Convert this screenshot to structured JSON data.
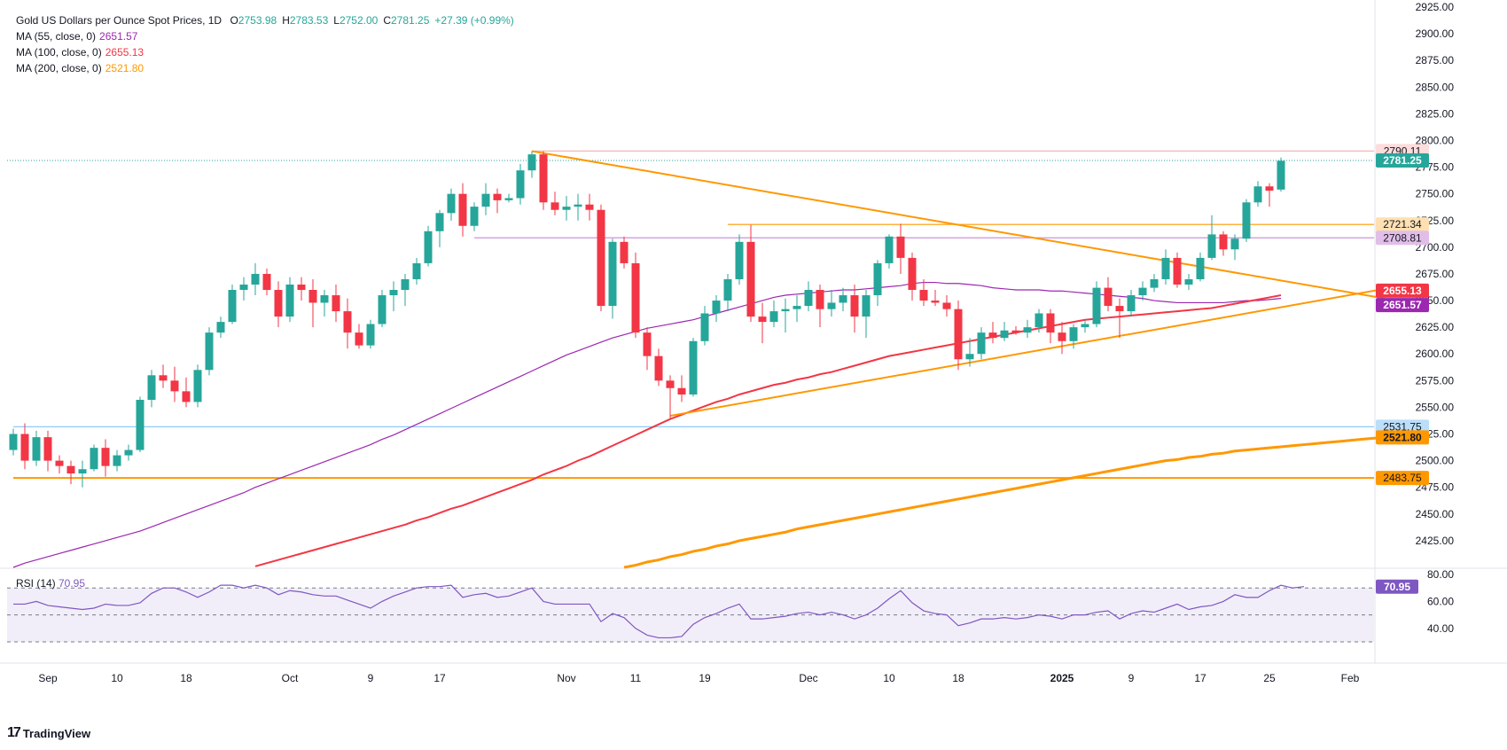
{
  "header": {
    "symbol": "Gold US Dollars per Ounce Spot Prices, 1D",
    "ohlc": [
      {
        "k": "O",
        "v": "2753.98"
      },
      {
        "k": "H",
        "v": "2783.53"
      },
      {
        "k": "L",
        "v": "2752.00"
      },
      {
        "k": "C",
        "v": "2781.25"
      },
      {
        "k": "",
        "v": "+27.39 (+0.99%)"
      }
    ]
  },
  "indicators": [
    {
      "label": "MA (55, close, 0)",
      "value": "2651.57",
      "color": "#9c27b0"
    },
    {
      "label": "MA (100, close, 0)",
      "value": "2655.13",
      "color": "#f23645"
    },
    {
      "label": "MA (200, close, 0)",
      "value": "2521.80",
      "color": "#ff9800"
    }
  ],
  "rsi": {
    "label": "RSI (14)",
    "value": "70.95",
    "color": "#7e57c2"
  },
  "branding": {
    "name": "TradingView"
  },
  "colors": {
    "up": "#26a69a",
    "down": "#f23645",
    "ma55": "#9c27b0",
    "ma100": "#f23645",
    "ma200": "#ff9800",
    "trend": "#ff9800",
    "rsi": "#7e57c2"
  },
  "chart_data": {
    "type": "candlestick",
    "title": "Gold US Dollars per Ounce Spot Prices, 1D",
    "ylim": [
      2400,
      2925
    ],
    "y_ticks": [
      2425,
      2450,
      2475,
      2500,
      2525,
      2550,
      2575,
      2600,
      2625,
      2650,
      2675,
      2700,
      2725,
      2750,
      2775,
      2800,
      2825,
      2850,
      2875,
      2900,
      2925
    ],
    "x_ticks": [
      {
        "label": "Sep",
        "i": 3
      },
      {
        "label": "10",
        "i": 9
      },
      {
        "label": "18",
        "i": 15
      },
      {
        "label": "Oct",
        "i": 24
      },
      {
        "label": "9",
        "i": 31
      },
      {
        "label": "17",
        "i": 37
      },
      {
        "label": "Nov",
        "i": 48
      },
      {
        "label": "11",
        "i": 54
      },
      {
        "label": "19",
        "i": 60
      },
      {
        "label": "Dec",
        "i": 69
      },
      {
        "label": "10",
        "i": 76
      },
      {
        "label": "18",
        "i": 82
      },
      {
        "label": "2025",
        "i": 91
      },
      {
        "label": "9",
        "i": 97
      },
      {
        "label": "17",
        "i": 103
      },
      {
        "label": "25",
        "i": 109
      },
      {
        "label": "Feb",
        "i": 116
      }
    ],
    "candles": [
      [
        2510,
        2530,
        2505,
        2525
      ],
      [
        2525,
        2535,
        2492,
        2500
      ],
      [
        2500,
        2528,
        2495,
        2522
      ],
      [
        2522,
        2528,
        2490,
        2500
      ],
      [
        2500,
        2505,
        2488,
        2495
      ],
      [
        2495,
        2500,
        2478,
        2488
      ],
      [
        2488,
        2500,
        2475,
        2492
      ],
      [
        2492,
        2515,
        2490,
        2512
      ],
      [
        2512,
        2520,
        2485,
        2495
      ],
      [
        2495,
        2510,
        2490,
        2505
      ],
      [
        2505,
        2515,
        2500,
        2510
      ],
      [
        2510,
        2560,
        2508,
        2557
      ],
      [
        2557,
        2585,
        2550,
        2580
      ],
      [
        2580,
        2590,
        2568,
        2575
      ],
      [
        2575,
        2588,
        2555,
        2565
      ],
      [
        2565,
        2578,
        2550,
        2555
      ],
      [
        2555,
        2590,
        2550,
        2585
      ],
      [
        2585,
        2625,
        2580,
        2620
      ],
      [
        2620,
        2635,
        2615,
        2630
      ],
      [
        2630,
        2665,
        2628,
        2660
      ],
      [
        2660,
        2672,
        2650,
        2665
      ],
      [
        2665,
        2685,
        2655,
        2675
      ],
      [
        2675,
        2680,
        2655,
        2660
      ],
      [
        2660,
        2668,
        2625,
        2635
      ],
      [
        2635,
        2672,
        2630,
        2665
      ],
      [
        2665,
        2672,
        2650,
        2660
      ],
      [
        2660,
        2670,
        2625,
        2648
      ],
      [
        2648,
        2660,
        2635,
        2655
      ],
      [
        2655,
        2665,
        2630,
        2640
      ],
      [
        2640,
        2652,
        2605,
        2620
      ],
      [
        2620,
        2628,
        2605,
        2608
      ],
      [
        2608,
        2632,
        2605,
        2628
      ],
      [
        2628,
        2660,
        2625,
        2655
      ],
      [
        2655,
        2668,
        2640,
        2660
      ],
      [
        2660,
        2675,
        2645,
        2670
      ],
      [
        2670,
        2690,
        2665,
        2685
      ],
      [
        2685,
        2720,
        2682,
        2715
      ],
      [
        2715,
        2735,
        2700,
        2732
      ],
      [
        2732,
        2755,
        2725,
        2750
      ],
      [
        2750,
        2760,
        2710,
        2720
      ],
      [
        2720,
        2742,
        2715,
        2738
      ],
      [
        2738,
        2760,
        2730,
        2750
      ],
      [
        2750,
        2755,
        2732,
        2744
      ],
      [
        2744,
        2750,
        2742,
        2746
      ],
      [
        2746,
        2778,
        2740,
        2772
      ],
      [
        2772,
        2790,
        2765,
        2787
      ],
      [
        2787,
        2790,
        2735,
        2742
      ],
      [
        2742,
        2752,
        2730,
        2735
      ],
      [
        2735,
        2748,
        2725,
        2738
      ],
      [
        2738,
        2750,
        2725,
        2740
      ],
      [
        2740,
        2750,
        2725,
        2735
      ],
      [
        2735,
        2740,
        2640,
        2645
      ],
      [
        2645,
        2708,
        2633,
        2705
      ],
      [
        2705,
        2710,
        2680,
        2685
      ],
      [
        2685,
        2695,
        2615,
        2620
      ],
      [
        2620,
        2625,
        2585,
        2598
      ],
      [
        2598,
        2605,
        2570,
        2575
      ],
      [
        2575,
        2580,
        2540,
        2568
      ],
      [
        2568,
        2580,
        2555,
        2562
      ],
      [
        2562,
        2615,
        2560,
        2612
      ],
      [
        2612,
        2645,
        2608,
        2638
      ],
      [
        2638,
        2655,
        2630,
        2650
      ],
      [
        2650,
        2675,
        2640,
        2670
      ],
      [
        2670,
        2712,
        2665,
        2705
      ],
      [
        2705,
        2721,
        2630,
        2635
      ],
      [
        2635,
        2648,
        2610,
        2630
      ],
      [
        2630,
        2650,
        2625,
        2640
      ],
      [
        2640,
        2652,
        2620,
        2642
      ],
      [
        2642,
        2655,
        2630,
        2645
      ],
      [
        2645,
        2668,
        2640,
        2660
      ],
      [
        2660,
        2665,
        2625,
        2642
      ],
      [
        2642,
        2660,
        2635,
        2648
      ],
      [
        2648,
        2662,
        2640,
        2655
      ],
      [
        2655,
        2665,
        2620,
        2635
      ],
      [
        2635,
        2660,
        2615,
        2655
      ],
      [
        2655,
        2688,
        2645,
        2685
      ],
      [
        2685,
        2712,
        2680,
        2710
      ],
      [
        2710,
        2722,
        2675,
        2690
      ],
      [
        2690,
        2695,
        2650,
        2660
      ],
      [
        2660,
        2670,
        2645,
        2650
      ],
      [
        2650,
        2660,
        2645,
        2648
      ],
      [
        2648,
        2655,
        2635,
        2642
      ],
      [
        2642,
        2650,
        2585,
        2595
      ],
      [
        2595,
        2615,
        2588,
        2600
      ],
      [
        2600,
        2625,
        2595,
        2620
      ],
      [
        2620,
        2630,
        2610,
        2615
      ],
      [
        2615,
        2630,
        2612,
        2622
      ],
      [
        2622,
        2626,
        2618,
        2620
      ],
      [
        2620,
        2632,
        2615,
        2625
      ],
      [
        2625,
        2642,
        2620,
        2638
      ],
      [
        2638,
        2642,
        2610,
        2620
      ],
      [
        2620,
        2630,
        2600,
        2612
      ],
      [
        2612,
        2628,
        2605,
        2625
      ],
      [
        2625,
        2632,
        2620,
        2628
      ],
      [
        2628,
        2668,
        2625,
        2662
      ],
      [
        2662,
        2672,
        2640,
        2645
      ],
      [
        2645,
        2652,
        2615,
        2640
      ],
      [
        2640,
        2660,
        2635,
        2655
      ],
      [
        2655,
        2668,
        2650,
        2662
      ],
      [
        2662,
        2675,
        2658,
        2670
      ],
      [
        2670,
        2698,
        2665,
        2690
      ],
      [
        2690,
        2695,
        2662,
        2665
      ],
      [
        2665,
        2675,
        2660,
        2670
      ],
      [
        2670,
        2695,
        2668,
        2690
      ],
      [
        2690,
        2730,
        2688,
        2712
      ],
      [
        2712,
        2715,
        2692,
        2698
      ],
      [
        2698,
        2712,
        2688,
        2708
      ],
      [
        2708,
        2745,
        2705,
        2742
      ],
      [
        2742,
        2762,
        2738,
        2757
      ],
      [
        2757,
        2760,
        2738,
        2753
      ],
      [
        2754,
        2784,
        2752,
        2781
      ]
    ],
    "ma55": [
      2400,
      2404,
      2407,
      2410,
      2413,
      2416,
      2419,
      2422,
      2425,
      2428,
      2431,
      2434,
      2438,
      2442,
      2446,
      2450,
      2454,
      2458,
      2462,
      2466,
      2470,
      2475,
      2479,
      2483,
      2487,
      2491,
      2495,
      2499,
      2503,
      2507,
      2511,
      2515,
      2520,
      2524,
      2529,
      2534,
      2539,
      2544,
      2549,
      2554,
      2559,
      2564,
      2569,
      2574,
      2579,
      2584,
      2589,
      2594,
      2599,
      2603,
      2607,
      2611,
      2615,
      2618,
      2621,
      2624,
      2626,
      2628,
      2630,
      2632,
      2635,
      2638,
      2641,
      2644,
      2647,
      2650,
      2653,
      2655,
      2656,
      2657,
      2658,
      2659,
      2660,
      2660,
      2661,
      2662,
      2663,
      2664,
      2666,
      2667,
      2667,
      2666,
      2666,
      2665,
      2664,
      2662,
      2661,
      2660,
      2660,
      2660,
      2659,
      2659,
      2658,
      2657,
      2656,
      2655,
      2654,
      2653,
      2652,
      2650,
      2649,
      2648,
      2648,
      2648,
      2648,
      2648,
      2649,
      2650,
      2650,
      2651,
      2652
    ],
    "ma55_start": 0,
    "ma100": [
      2380,
      2382,
      2385,
      2387,
      2390,
      2393,
      2396,
      2398,
      2401,
      2404,
      2407,
      2410,
      2413,
      2416,
      2419,
      2422,
      2425,
      2428,
      2431,
      2434,
      2437,
      2440,
      2444,
      2447,
      2451,
      2455,
      2458,
      2462,
      2466,
      2470,
      2474,
      2478,
      2482,
      2487,
      2491,
      2495,
      2500,
      2504,
      2509,
      2514,
      2519,
      2524,
      2529,
      2534,
      2539,
      2543,
      2547,
      2551,
      2555,
      2558,
      2562,
      2565,
      2568,
      2571,
      2573,
      2576,
      2578,
      2581,
      2583,
      2586,
      2589,
      2592,
      2595,
      2598,
      2600,
      2602,
      2604,
      2606,
      2608,
      2610,
      2612,
      2614,
      2616,
      2618,
      2620,
      2622,
      2624,
      2626,
      2628,
      2630,
      2632,
      2633,
      2634,
      2635,
      2636,
      2637,
      2638,
      2639,
      2640,
      2641,
      2642,
      2643,
      2645,
      2647,
      2649,
      2651,
      2653,
      2655
    ],
    "ma100_start": 13,
    "ma200": [
      2400,
      2402,
      2405,
      2407,
      2410,
      2412,
      2415,
      2417,
      2420,
      2422,
      2425,
      2427,
      2429,
      2431,
      2433,
      2436,
      2438,
      2440,
      2442,
      2444,
      2446,
      2448,
      2450,
      2452,
      2454,
      2456,
      2458,
      2460,
      2462,
      2464,
      2466,
      2468,
      2470,
      2472,
      2474,
      2476,
      2478,
      2480,
      2482,
      2484,
      2486,
      2488,
      2490,
      2492,
      2494,
      2496,
      2498,
      2500,
      2501,
      2503,
      2504,
      2506,
      2507,
      2509,
      2510,
      2511,
      2512,
      2513,
      2514,
      2515,
      2516,
      2517,
      2518,
      2519,
      2520,
      2521,
      2522
    ],
    "ma200_start": 53,
    "horizontal_levels": [
      {
        "value": 2790.11,
        "label": "2790.11",
        "line": "#f4b6b6",
        "badge_bg": "#fddcdc",
        "badge_fg": "#131722",
        "from": 45
      },
      {
        "value": 2721.34,
        "label": "2721.34",
        "line": "#ff9800",
        "badge_bg": "#ffe0b2",
        "badge_fg": "#131722",
        "from": 62
      },
      {
        "value": 2708.81,
        "label": "2708.81",
        "line": "#ce93d8",
        "badge_bg": "#e1bee7",
        "badge_fg": "#131722",
        "from": 40
      },
      {
        "value": 2531.75,
        "label": "2531.75",
        "line": "#90caf9",
        "badge_bg": "#bbdefb",
        "badge_fg": "#131722",
        "from": 0
      },
      {
        "value": 2483.75,
        "label": "2483.75",
        "line": "#ff9800",
        "badge_bg": "#ff9800",
        "badge_fg": "#131722",
        "from": 0
      }
    ],
    "price_badges": [
      {
        "value": 2781.25,
        "label": "2781.25",
        "bg": "#26a69a",
        "fg": "#ffffff"
      },
      {
        "value": 2655.13,
        "label": "2655.13",
        "bg": "#f23645",
        "fg": "#ffffff"
      },
      {
        "value": 2651.57,
        "label": "2651.57",
        "bg": "#9c27b0",
        "fg": "#ffffff"
      },
      {
        "value": 2521.8,
        "label": "2521.80",
        "bg": "#ff9800",
        "fg": "#131722"
      }
    ],
    "trendlines": [
      {
        "from": [
          45,
          2790
        ],
        "to": [
          119,
          2652
        ]
      },
      {
        "from": [
          57,
          2542
        ],
        "to": [
          119,
          2661
        ]
      }
    ],
    "rsi": {
      "ylim": [
        30,
        80
      ],
      "levels": [
        70,
        50,
        30
      ],
      "ticks": [
        80,
        60,
        40
      ],
      "values": [
        58,
        58,
        60,
        57,
        56,
        55,
        54,
        55,
        58,
        57,
        57,
        59,
        66,
        70,
        70,
        67,
        63,
        67,
        72,
        72,
        70,
        72,
        70,
        65,
        68,
        67,
        65,
        64,
        64,
        61,
        58,
        55,
        60,
        64,
        67,
        70,
        71,
        71,
        72,
        63,
        65,
        66,
        63,
        64,
        67,
        70,
        60,
        58,
        58,
        58,
        58,
        45,
        51,
        48,
        40,
        35,
        33,
        33,
        34,
        43,
        48,
        51,
        55,
        58,
        47,
        47,
        48,
        49,
        51,
        52,
        50,
        52,
        50,
        47,
        50,
        55,
        62,
        68,
        59,
        53,
        51,
        50,
        42,
        44,
        47,
        47,
        48,
        47,
        48,
        50,
        49,
        47,
        50,
        50,
        52,
        53,
        47,
        51,
        53,
        52,
        55,
        58,
        54,
        56,
        57,
        60,
        65,
        63,
        63,
        68,
        72,
        70,
        71
      ]
    },
    "current_price_line": 2781.25
  }
}
